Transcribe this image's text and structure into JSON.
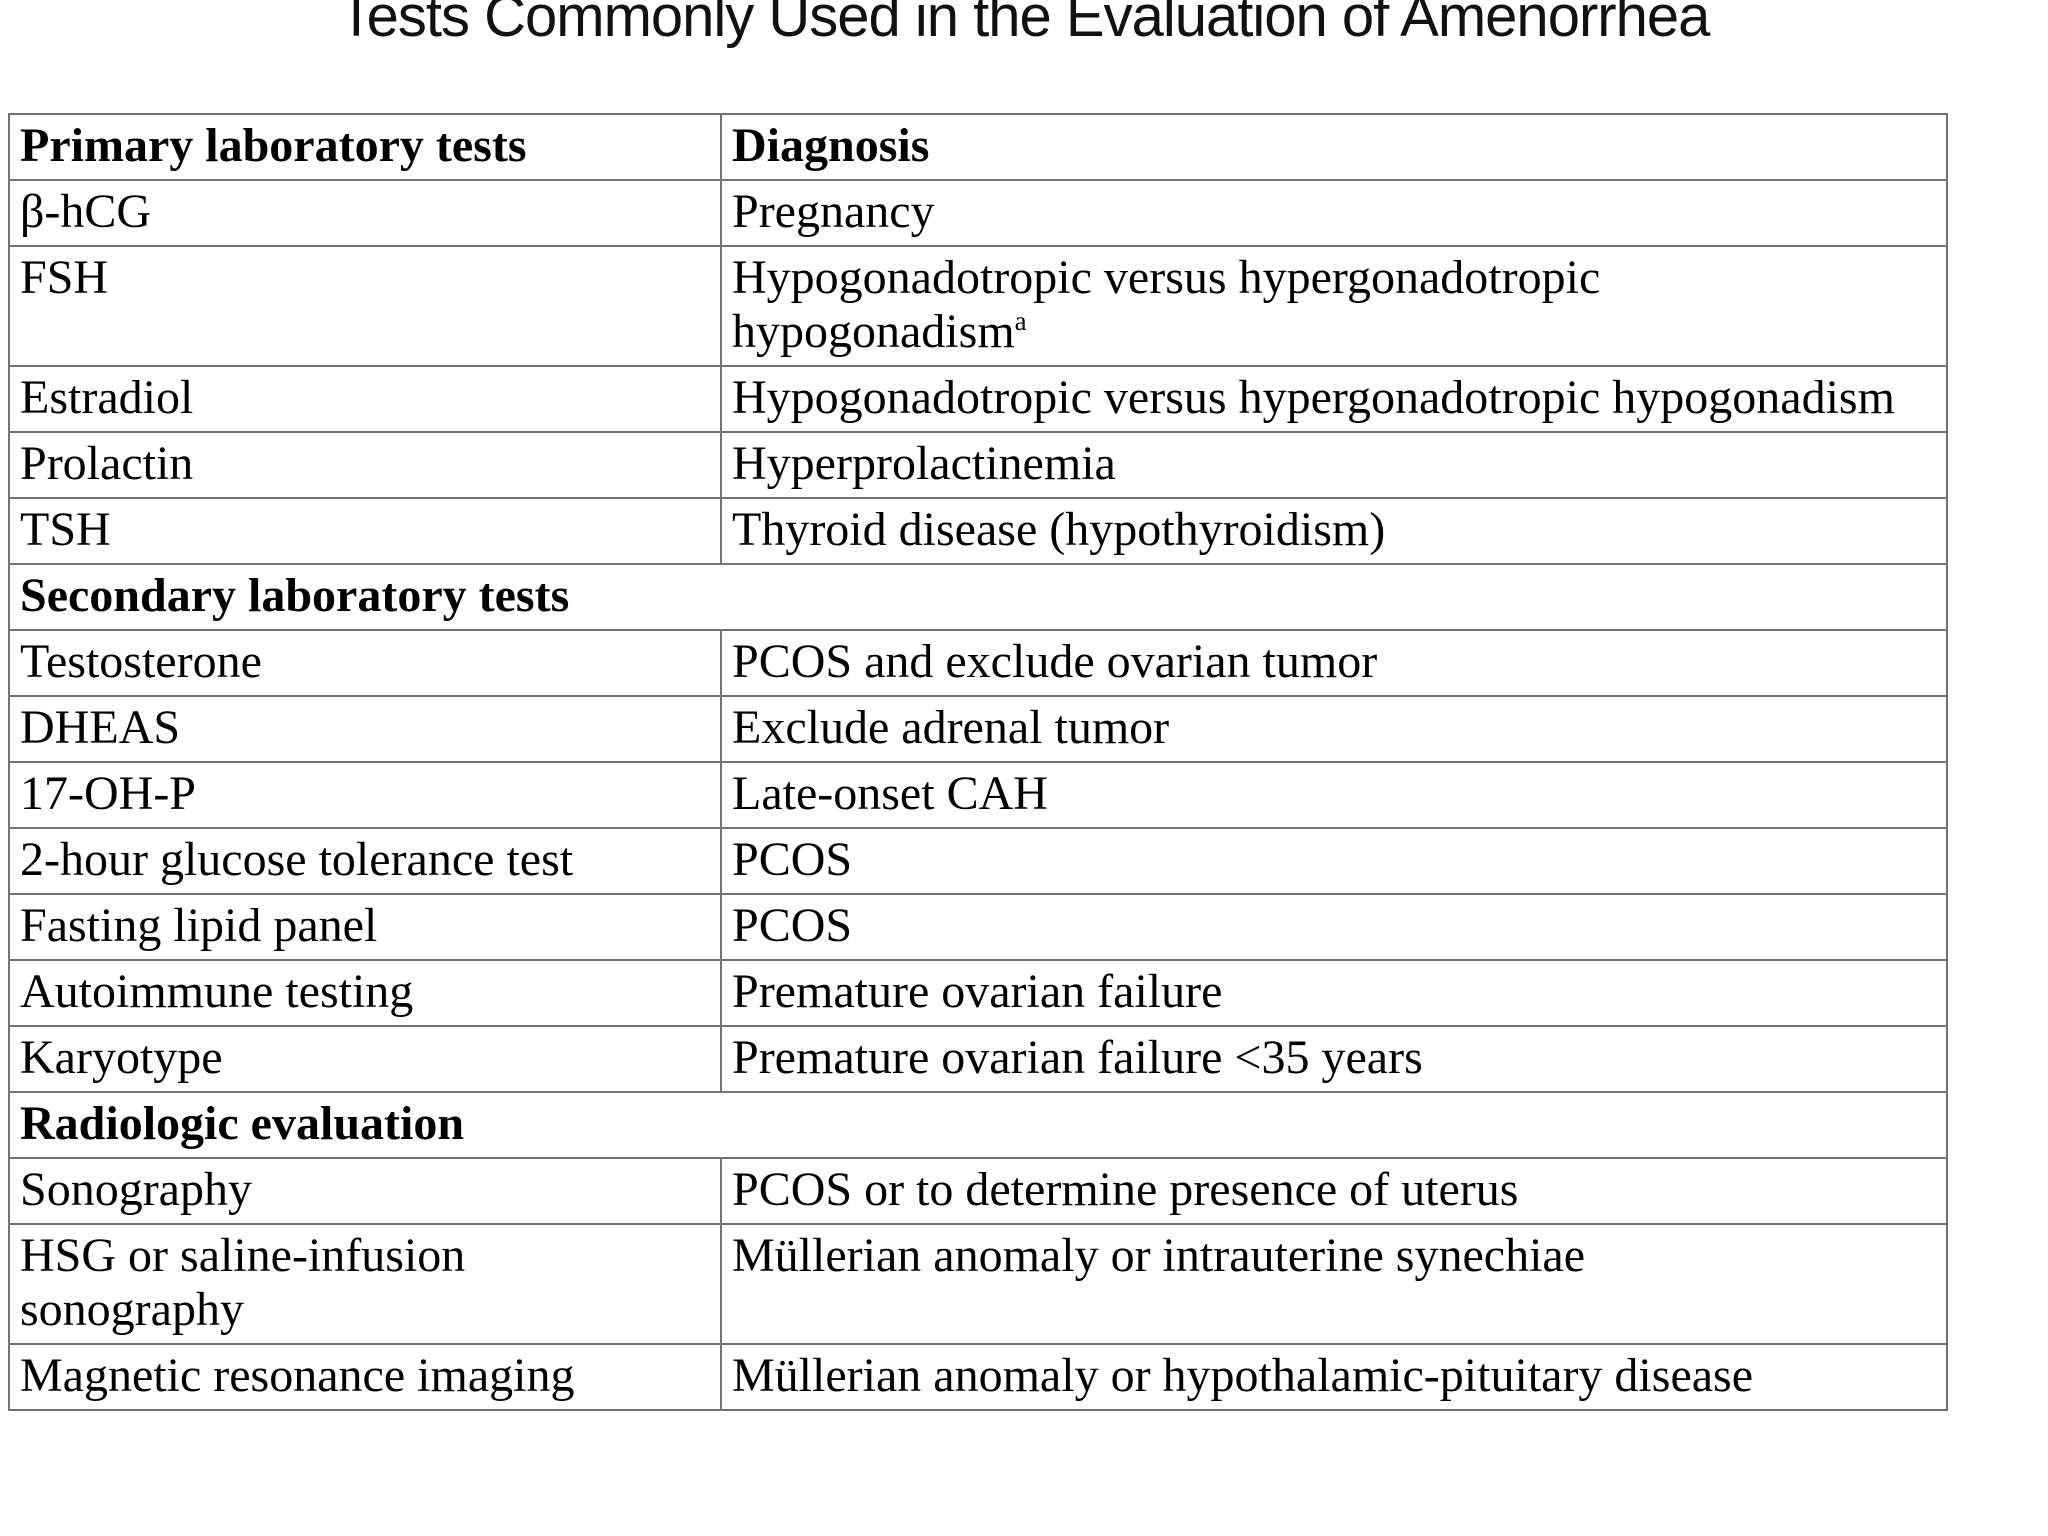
{
  "title": "Tests Commonly Used in the Evaluation of Amenorrhea",
  "colors": {
    "background": "#ffffff",
    "text": "#000000",
    "table_border": "#737373"
  },
  "table": {
    "columns": [
      "Primary laboratory tests",
      "Diagnosis"
    ],
    "rows": [
      {
        "type": "data",
        "test": "β-hCG",
        "diagnosis": "Pregnancy"
      },
      {
        "type": "data",
        "test": "FSH",
        "diagnosis": "Hypogonadotropic versus hypergonadotropic\nhypogonadism",
        "diagnosis_superscript": "a"
      },
      {
        "type": "data",
        "test": "Estradiol",
        "diagnosis": "Hypogonadotropic versus hypergonadotropic hypogonadism"
      },
      {
        "type": "data",
        "test": "Prolactin",
        "diagnosis": "Hyperprolactinemia"
      },
      {
        "type": "data",
        "test": "TSH",
        "diagnosis": "Thyroid disease (hypothyroidism)"
      },
      {
        "type": "section",
        "label": "Secondary laboratory tests"
      },
      {
        "type": "data",
        "test": "Testosterone",
        "diagnosis": "PCOS and exclude ovarian tumor"
      },
      {
        "type": "data",
        "test": "DHEAS",
        "diagnosis": "Exclude adrenal tumor"
      },
      {
        "type": "data",
        "test": "17-OH-P",
        "diagnosis": "Late-onset CAH"
      },
      {
        "type": "data",
        "test": "2-hour glucose tolerance test",
        "diagnosis": "PCOS"
      },
      {
        "type": "data",
        "test": "Fasting lipid panel",
        "diagnosis": "PCOS"
      },
      {
        "type": "data",
        "test": "Autoimmune testing",
        "diagnosis": "Premature ovarian failure"
      },
      {
        "type": "data",
        "test": "Karyotype",
        "diagnosis": "Premature ovarian failure <35 years"
      },
      {
        "type": "section",
        "label": "Radiologic evaluation"
      },
      {
        "type": "data",
        "test": "Sonography",
        "diagnosis": "PCOS or to determine presence of uterus"
      },
      {
        "type": "data",
        "test": "HSG or saline-infusion\nsonography",
        "diagnosis": "Müllerian anomaly or intrauterine synechiae"
      },
      {
        "type": "data",
        "test": "Magnetic resonance imaging",
        "diagnosis": "Müllerian anomaly or hypothalamic-pituitary disease"
      }
    ]
  }
}
